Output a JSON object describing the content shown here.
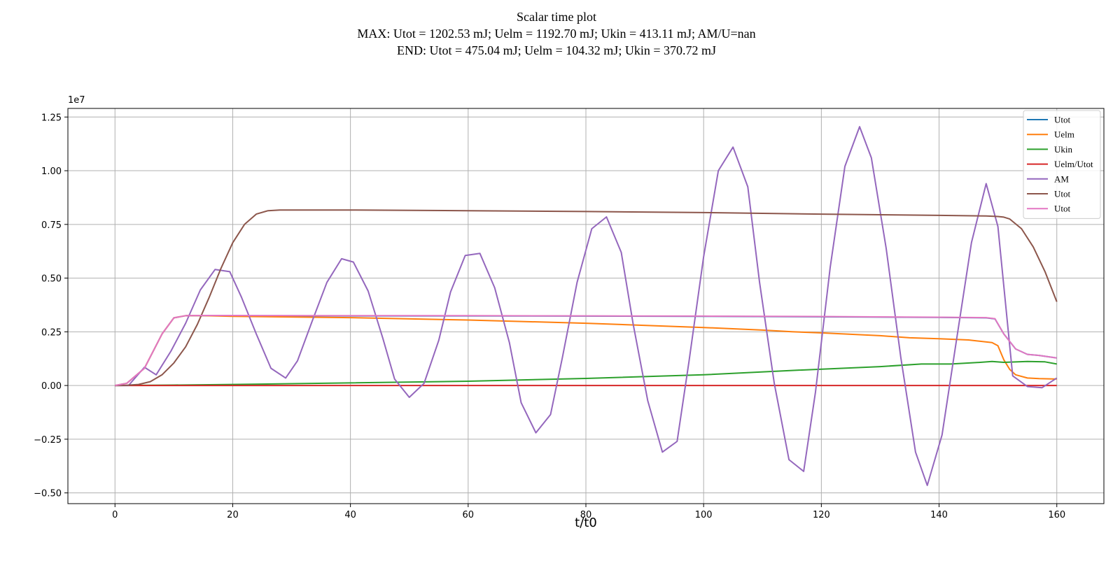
{
  "titles": {
    "line1": "Scalar time plot",
    "line2": "MAX: Utot = 1202.53 mJ;  Uelm = 1192.70 mJ; Ukin = 413.11 mJ;  AM/U=nan",
    "line3": "END: Utot = 475.04 mJ;  Uelm = 104.32 mJ;  Ukin = 370.72 mJ"
  },
  "chart_data": {
    "type": "line",
    "title": "Scalar time plot",
    "xlabel": "t/t0",
    "ylabel": "",
    "y_offset_label": "1e7",
    "xlim": [
      -8,
      168
    ],
    "ylim": [
      -0.55,
      1.29
    ],
    "x_ticks": [
      0,
      20,
      40,
      60,
      80,
      100,
      120,
      140,
      160
    ],
    "x_tick_labels": [
      "0",
      "20",
      "40",
      "60",
      "80",
      "100",
      "120",
      "140",
      "160"
    ],
    "y_ticks": [
      -0.5,
      -0.25,
      0.0,
      0.25,
      0.5,
      0.75,
      1.0,
      1.25
    ],
    "y_tick_labels": [
      "−0.50",
      "−0.25",
      "0.00",
      "0.25",
      "0.50",
      "0.75",
      "1.00",
      "1.25"
    ],
    "grid": true,
    "legend_position": "top-right",
    "series": [
      {
        "name": "Utot",
        "color": "#1f77b4",
        "x": [
          0,
          2,
          5,
          8,
          10,
          12,
          15,
          20,
          40,
          60,
          80,
          100,
          120,
          140,
          148,
          149.5,
          151,
          153,
          155,
          157,
          160
        ],
        "y": [
          0,
          0.01,
          0.08,
          0.24,
          0.315,
          0.325,
          0.325,
          0.325,
          0.324,
          0.324,
          0.323,
          0.322,
          0.32,
          0.317,
          0.315,
          0.31,
          0.24,
          0.17,
          0.145,
          0.14,
          0.128
        ]
      },
      {
        "name": "Uelm",
        "color": "#ff7f0e",
        "x": [
          0,
          2,
          5,
          8,
          10,
          12,
          15,
          20,
          40,
          60,
          80,
          100,
          110,
          115,
          120,
          130,
          135,
          140,
          145,
          149,
          150,
          151,
          152,
          153,
          155,
          157,
          160
        ],
        "y": [
          0,
          0.01,
          0.08,
          0.24,
          0.315,
          0.325,
          0.325,
          0.322,
          0.316,
          0.305,
          0.29,
          0.27,
          0.258,
          0.25,
          0.245,
          0.232,
          0.222,
          0.218,
          0.212,
          0.2,
          0.185,
          0.12,
          0.075,
          0.05,
          0.035,
          0.032,
          0.03
        ]
      },
      {
        "name": "Ukin",
        "color": "#2ca02c",
        "x": [
          0,
          10,
          20,
          40,
          60,
          80,
          100,
          115,
          130,
          137,
          142,
          147,
          149,
          151,
          155,
          158,
          160
        ],
        "y": [
          0,
          0.002,
          0.005,
          0.012,
          0.02,
          0.033,
          0.05,
          0.07,
          0.088,
          0.1,
          0.1,
          0.108,
          0.112,
          0.108,
          0.112,
          0.11,
          0.1
        ]
      },
      {
        "name": "Uelm/Utot",
        "color": "#d62728",
        "x": [
          0,
          160
        ],
        "y": [
          0,
          0
        ]
      },
      {
        "name": "AM",
        "color": "#9467bd",
        "x": [
          0,
          2.3,
          5,
          7,
          9.5,
          12,
          14.5,
          17,
          19.5,
          21.5,
          24,
          26.5,
          29,
          31,
          33.5,
          36,
          38.5,
          40.5,
          43,
          45.5,
          47.5,
          50,
          52.5,
          55,
          57,
          59.5,
          62,
          64.5,
          67,
          69,
          71.5,
          74,
          76,
          78.5,
          81,
          83.5,
          86,
          88,
          90.5,
          93,
          95.5,
          97.5,
          100,
          102.5,
          105,
          107.5,
          109.5,
          112,
          114.5,
          117,
          119,
          121.5,
          124,
          126.5,
          128.5,
          131,
          133.5,
          136,
          138,
          140.5,
          143,
          145.5,
          148,
          150,
          152.5,
          155,
          157.5,
          160
        ],
        "y": [
          0,
          0,
          0.085,
          0.05,
          0.16,
          0.29,
          0.445,
          0.54,
          0.53,
          0.41,
          0.24,
          0.08,
          0.035,
          0.115,
          0.3,
          0.48,
          0.59,
          0.575,
          0.44,
          0.22,
          0.03,
          -0.055,
          0.01,
          0.21,
          0.435,
          0.605,
          0.615,
          0.455,
          0.2,
          -0.08,
          -0.22,
          -0.135,
          0.13,
          0.48,
          0.73,
          0.785,
          0.62,
          0.29,
          -0.07,
          -0.31,
          -0.26,
          0.11,
          0.6,
          1.0,
          1.11,
          0.925,
          0.48,
          0.01,
          -0.345,
          -0.4,
          -0.03,
          0.55,
          1.02,
          1.205,
          1.06,
          0.64,
          0.13,
          -0.31,
          -0.465,
          -0.23,
          0.22,
          0.665,
          0.94,
          0.74,
          0.045,
          -0.005,
          -0.01,
          0.035
        ]
      },
      {
        "name": "Utot",
        "color": "#8c564b",
        "x": [
          0,
          2,
          4,
          6,
          8,
          10,
          12,
          14,
          16,
          18,
          20,
          22,
          24,
          26,
          28,
          40,
          60,
          80,
          100,
          120,
          140,
          148,
          150,
          151,
          152,
          154,
          156,
          158,
          160
        ],
        "y": [
          0,
          0.001,
          0.005,
          0.018,
          0.05,
          0.105,
          0.18,
          0.285,
          0.41,
          0.545,
          0.665,
          0.75,
          0.798,
          0.814,
          0.817,
          0.817,
          0.814,
          0.81,
          0.805,
          0.798,
          0.792,
          0.789,
          0.787,
          0.784,
          0.775,
          0.73,
          0.645,
          0.53,
          0.39
        ]
      },
      {
        "name": "Utot",
        "color": "#e377c2",
        "x": [
          0,
          2,
          5,
          8,
          10,
          12,
          15,
          20,
          40,
          60,
          80,
          100,
          120,
          140,
          148,
          149.5,
          151,
          153,
          155,
          157,
          160
        ],
        "y": [
          0,
          0.01,
          0.08,
          0.24,
          0.315,
          0.325,
          0.326,
          0.326,
          0.325,
          0.325,
          0.324,
          0.323,
          0.321,
          0.318,
          0.316,
          0.311,
          0.24,
          0.17,
          0.145,
          0.14,
          0.128
        ]
      }
    ]
  }
}
